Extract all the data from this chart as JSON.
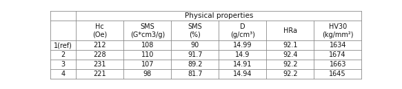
{
  "title": "Physical properties",
  "col_headers_line1": [
    "Hc",
    "SMS",
    "SMS",
    "D",
    "HRa",
    "HV30"
  ],
  "col_headers_line2": [
    "(Oe)",
    "(G*cm3/g)",
    "(%)",
    "(g/cm³)",
    "",
    "(kg/mm²)"
  ],
  "row_labels": [
    "1(ref)",
    "2",
    "3",
    "4"
  ],
  "table_data": [
    [
      "212",
      "108",
      "90",
      "14.99",
      "92.1",
      "1634"
    ],
    [
      "228",
      "110",
      "91.7",
      "14.9",
      "92.4",
      "1674"
    ],
    [
      "231",
      "107",
      "89.2",
      "14.91",
      "92.2",
      "1663"
    ],
    [
      "221",
      "98",
      "81.7",
      "14.94",
      "92.2",
      "1645"
    ]
  ],
  "bg_color": "#ffffff",
  "line_color": "#888888",
  "text_color": "#111111",
  "font_size": 7.0,
  "title_font_size": 7.5,
  "fig_width": 5.83,
  "fig_height": 1.3,
  "dpi": 100
}
